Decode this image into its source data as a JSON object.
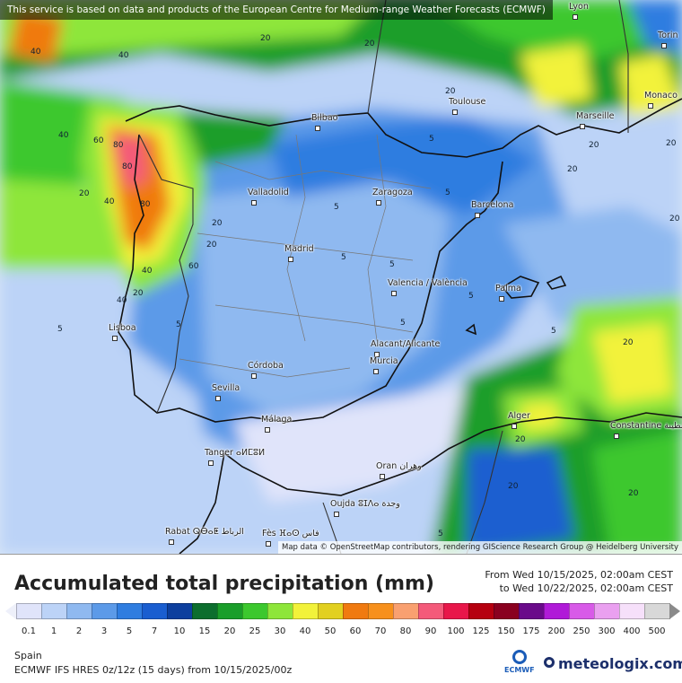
{
  "banner": "This service is based on data and products of the European Centre for Medium-range Weather Forecasts (ECMWF)",
  "attribution": "Map data © OpenStreetMap contributors, rendering GIScience Research Group @ Heidelberg University",
  "cities": [
    {
      "name": "Lyon"
    },
    {
      "name": "Torin"
    },
    {
      "name": "Monaco"
    },
    {
      "name": "Toulouse"
    },
    {
      "name": "Marseille"
    },
    {
      "name": "Bilbao"
    },
    {
      "name": "Valladolid"
    },
    {
      "name": "Zaragoza"
    },
    {
      "name": "Barcelona"
    },
    {
      "name": "Madrid"
    },
    {
      "name": "Valencia / València"
    },
    {
      "name": "Palma"
    },
    {
      "name": "Lisboa"
    },
    {
      "name": "Alacant/Alicante"
    },
    {
      "name": "Murcia"
    },
    {
      "name": "Córdoba"
    },
    {
      "name": "Sevilla"
    },
    {
      "name": "Málaga"
    },
    {
      "name": "Alger"
    },
    {
      "name": "Constantine قسنطينة"
    },
    {
      "name": "Tanger ⴰⵍⵎⵓⵍ"
    },
    {
      "name": "Oran وهران"
    },
    {
      "name": "Oujda ⵓⵊⴷⴰ وجدة"
    },
    {
      "name": "Rabat ⵕⴱⴰⵟ الرباط"
    },
    {
      "name": "Fès ⴼⴰⵙ فاس"
    }
  ],
  "contour_labels": [
    "40",
    "40",
    "20",
    "40",
    "20",
    "40",
    "60",
    "80",
    "80",
    "40",
    "20",
    "20",
    "40",
    "60",
    "80",
    "20",
    "5",
    "5",
    "5",
    "5",
    "5",
    "5",
    "5",
    "5",
    "5",
    "5",
    "20",
    "20",
    "20",
    "20",
    "20",
    "5",
    "20",
    "20",
    "20",
    "20",
    "20"
  ],
  "legend": {
    "title": "Accumulated total precipitation (mm)",
    "period_from": "From Wed 10/15/2025, 02:00am CEST",
    "period_to": "to Wed 10/22/2025, 02:00am CEST",
    "region": "Spain",
    "model": "ECMWF IFS HRES 0z/12z (15 days) from  10/15/2025/00z",
    "scale_values": [
      "0.1",
      "1",
      "2",
      "3",
      "5",
      "7",
      "10",
      "15",
      "20",
      "25",
      "30",
      "40",
      "50",
      "60",
      "70",
      "80",
      "90",
      "100",
      "125",
      "150",
      "175",
      "200",
      "250",
      "300",
      "400",
      "500"
    ],
    "colors": [
      "#e0e4fa",
      "#bcd3f7",
      "#8fb9f0",
      "#5c9ae8",
      "#2f7de0",
      "#1a5ed0",
      "#0d3f9e",
      "#0c6e2e",
      "#1a9e2a",
      "#3cc82e",
      "#8ee63a",
      "#f2f23a",
      "#e2d020",
      "#f07a10",
      "#f7901c",
      "#f9a070",
      "#f45a7a",
      "#e8174a",
      "#b60010",
      "#8a0020",
      "#6a0a8a",
      "#b01ad8",
      "#d85ae8",
      "#eaa0f0",
      "#f6e0fa",
      "#d8d8d8"
    ],
    "ecmwf_label": "ECMWF",
    "brand": "meteologix.com"
  }
}
